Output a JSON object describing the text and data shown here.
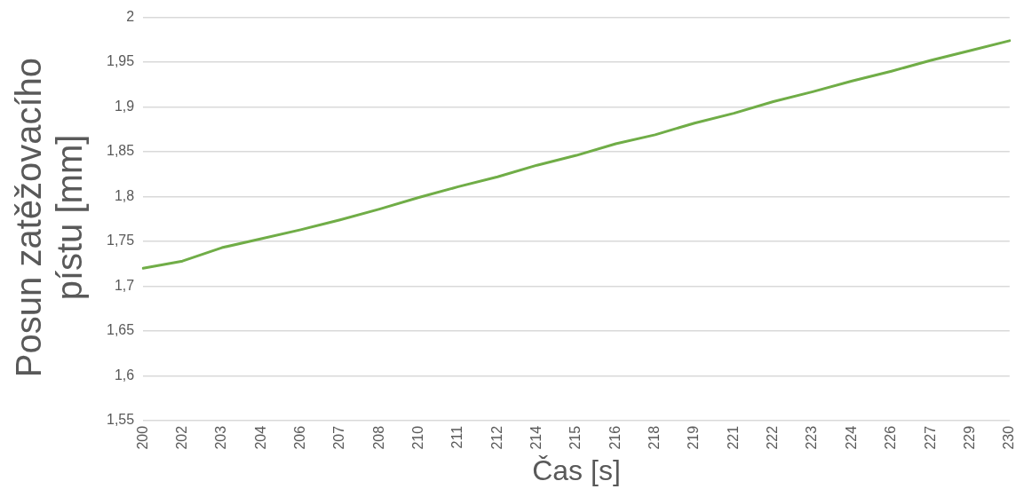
{
  "chart_data": {
    "type": "line",
    "xlabel": "Čas [s]",
    "ylabel": "Posun zatěžovacího pístu [mm]",
    "categories": [
      "200",
      "202",
      "203",
      "204",
      "206",
      "207",
      "208",
      "210",
      "211",
      "212",
      "214",
      "215",
      "216",
      "218",
      "219",
      "221",
      "222",
      "223",
      "224",
      "226",
      "227",
      "229",
      "230"
    ],
    "series": [
      {
        "color": "#70ad47",
        "values": [
          1.72,
          1.728,
          1.743,
          1.753,
          1.763,
          1.774,
          1.786,
          1.799,
          1.811,
          1.822,
          1.835,
          1.846,
          1.859,
          1.869,
          1.882,
          1.893,
          1.906,
          1.917,
          1.929,
          1.94,
          1.952,
          1.963,
          1.974
        ]
      }
    ],
    "ylim": [
      1.55,
      2
    ],
    "yticks": [
      {
        "value": 1.55,
        "label": "1,55"
      },
      {
        "value": 1.6,
        "label": "1,6"
      },
      {
        "value": 1.65,
        "label": "1,65"
      },
      {
        "value": 1.7,
        "label": "1,7"
      },
      {
        "value": 1.75,
        "label": "1,75"
      },
      {
        "value": 1.8,
        "label": "1,8"
      },
      {
        "value": 1.85,
        "label": "1,85"
      },
      {
        "value": 1.9,
        "label": "1,9"
      },
      {
        "value": 1.95,
        "label": "1,95"
      },
      {
        "value": 2,
        "label": "2"
      }
    ],
    "grid": "y",
    "legend": false,
    "marker": "none",
    "line_style": "solid"
  }
}
